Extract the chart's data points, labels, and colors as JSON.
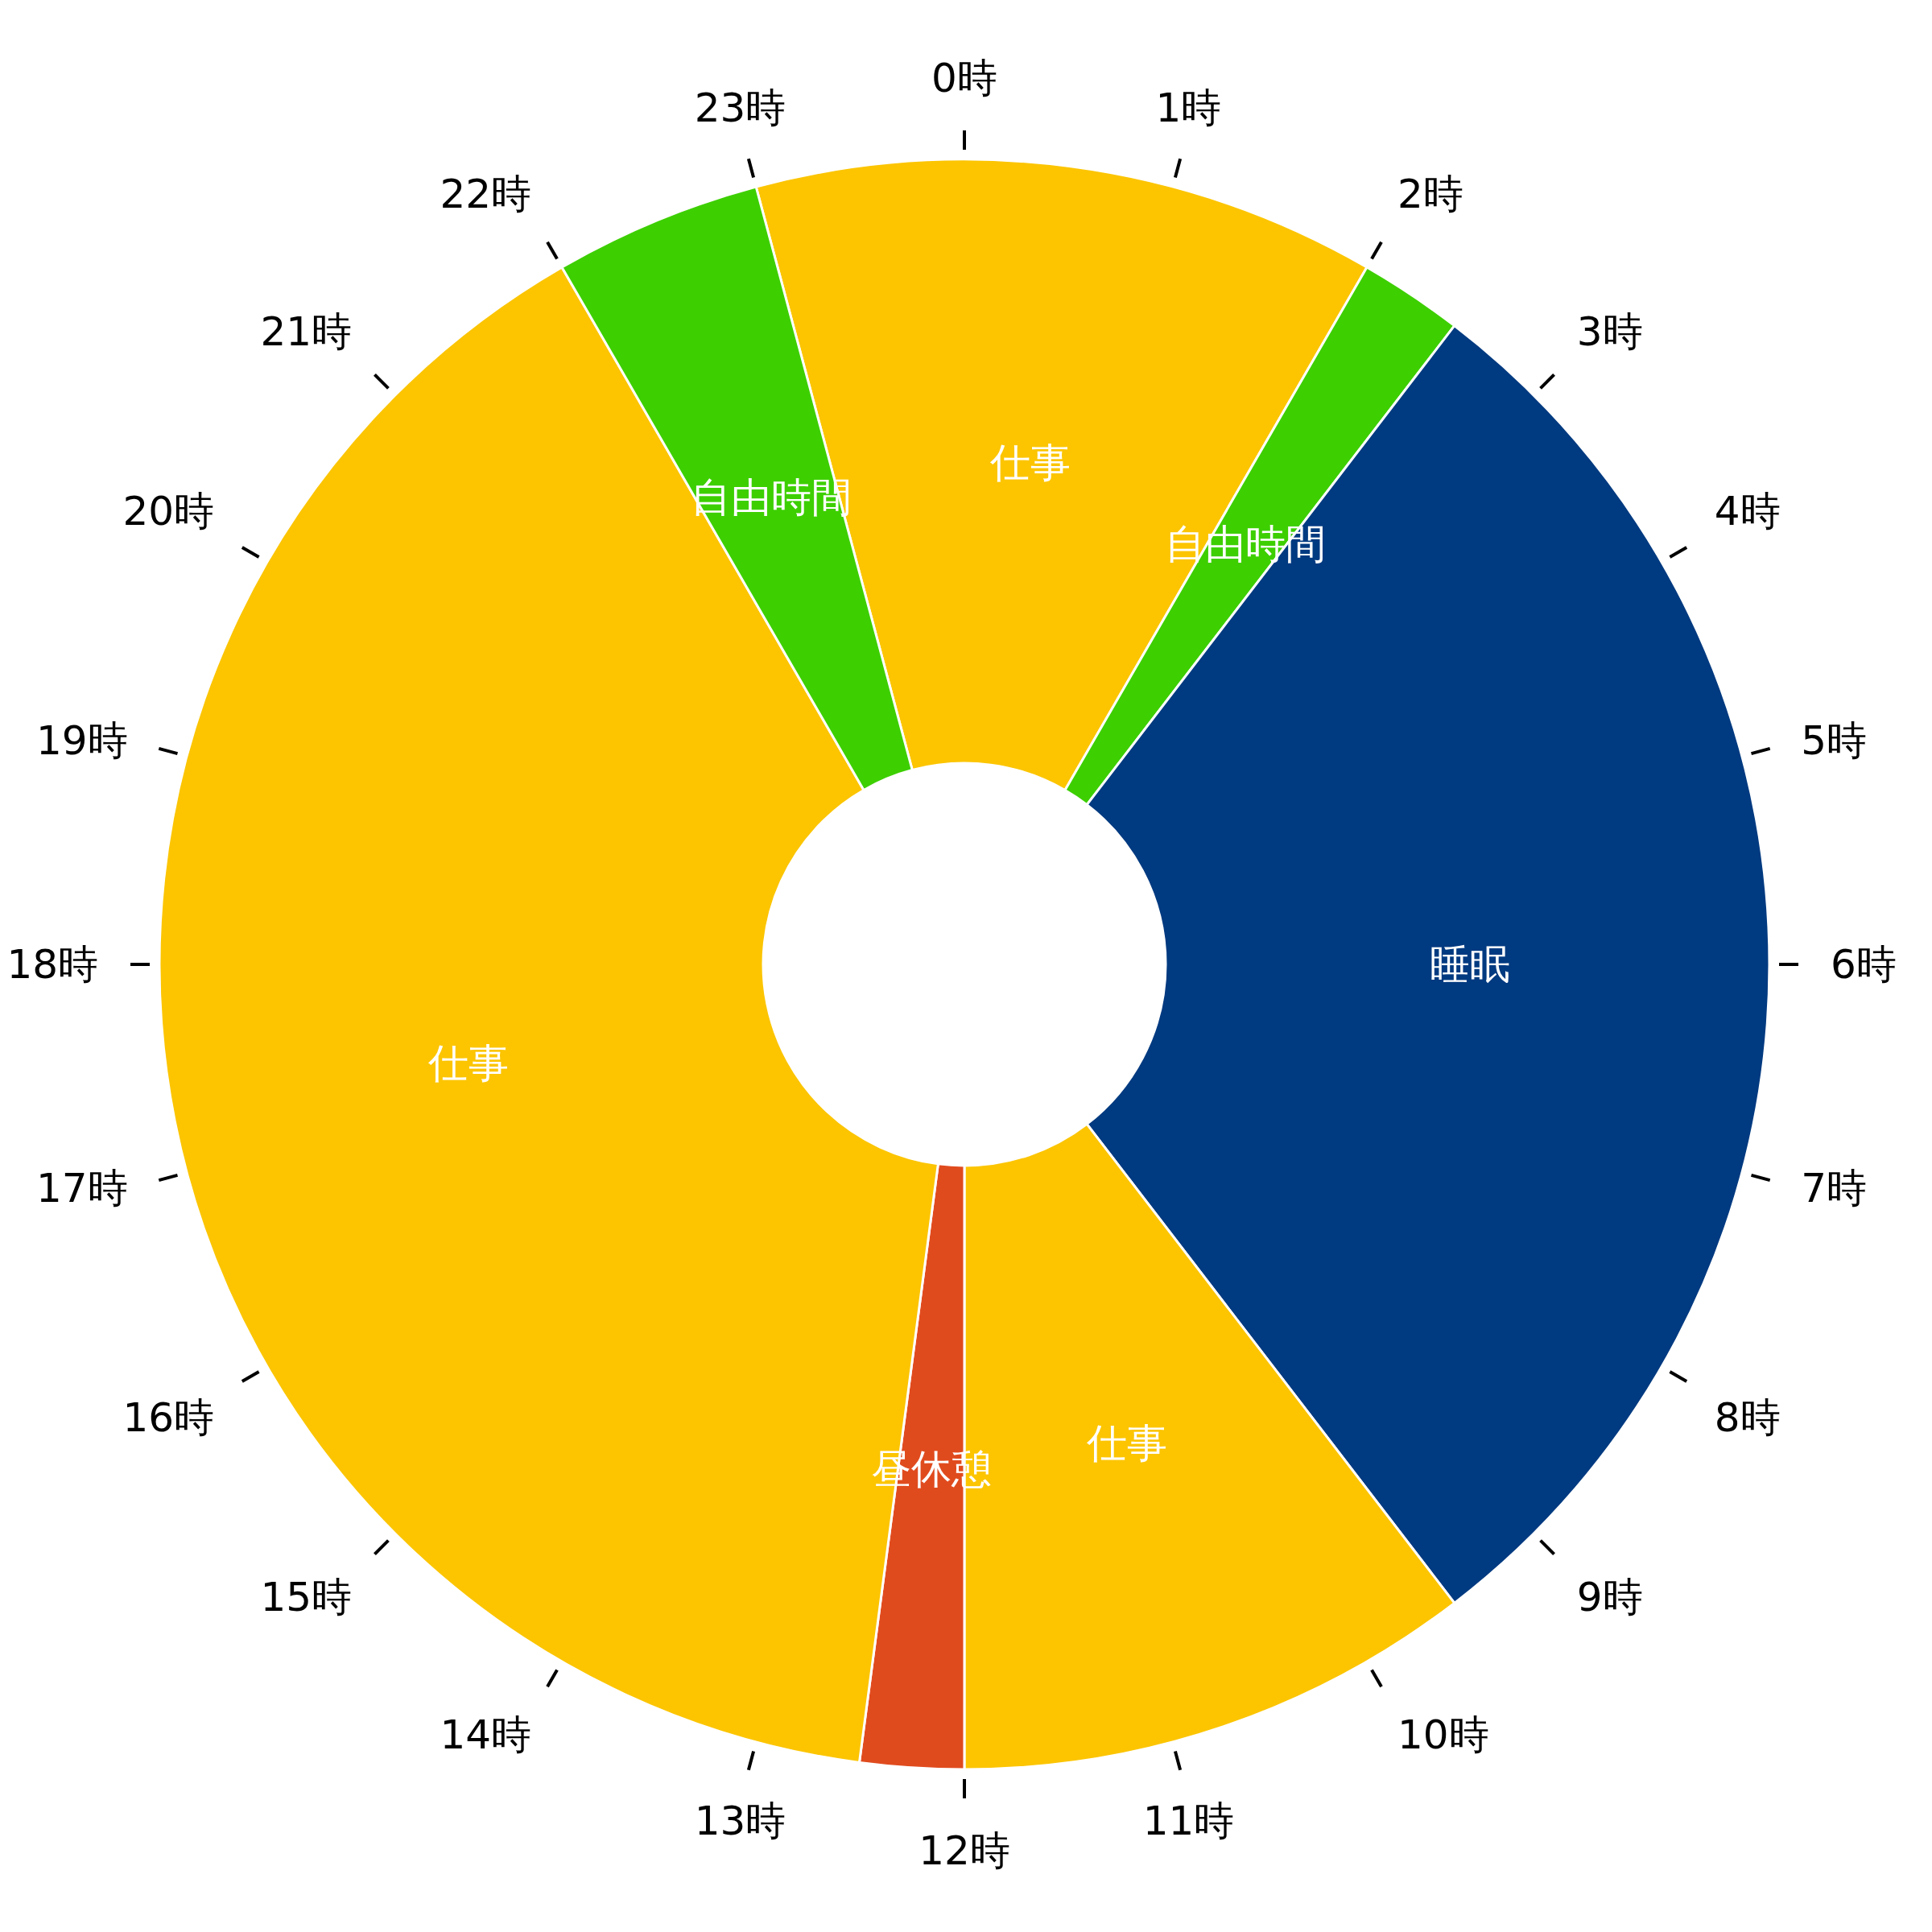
{
  "chart_data": {
    "type": "donut",
    "categories": [
      "仕事",
      "自由時間",
      "睡眠",
      "仕事",
      "昼休憩",
      "仕事",
      "自由時間"
    ],
    "values": [
      12.5,
      2.083,
      29.167,
      10.417,
      2.083,
      39.583,
      4.167
    ],
    "colors": [
      "#fcc500",
      "#3dcf00",
      "#003a80",
      "#fcc500",
      "#e04b1e",
      "#fcc500",
      "#3dcf00"
    ],
    "annotations": [
      "0時",
      "1時",
      "2時",
      "3時",
      "4時",
      "5時",
      "6時",
      "7時",
      "8時",
      "9時",
      "10時",
      "11時",
      "12時",
      "13時",
      "14時",
      "15時",
      "16時",
      "17時",
      "18時",
      "19時",
      "20時",
      "21時",
      "22時",
      "23時"
    ],
    "legend": false
  }
}
